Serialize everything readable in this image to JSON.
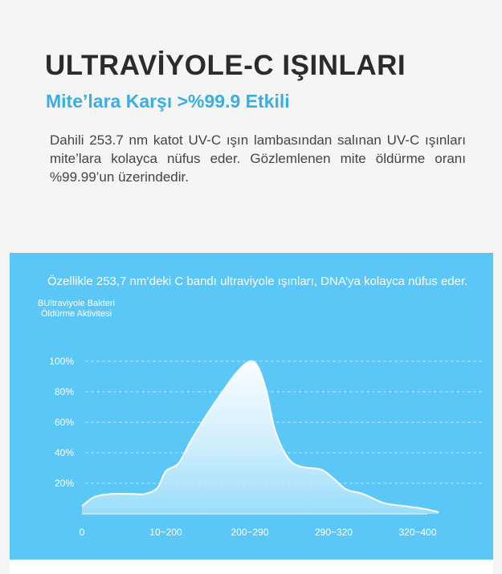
{
  "header": {
    "title": "ULTRAVİYOLE-C IŞINLARI",
    "subtitle": "Mite’lara Karşı >%99.9 Etkili",
    "description": "Dahili 253.7 nm katot UV-C ışın lambasından salınan UV-C ışınları mite’lara kolayca nüfus eder. Gözlemlenen mite öldürme oranı %99.99’un üzerindedir."
  },
  "panel": {
    "caption": "Özellikle 253,7 nm’deki C bandı ultraviyole ışınları, DNA’ya kolayca nüfus eder.",
    "bg_color": "#5bc7f7"
  },
  "chart_data": {
    "type": "area",
    "ylabel_lines": [
      "BUltraviyole Bakteri",
      "Öldürme Aktivitesi"
    ],
    "xlabel": "",
    "y_ticks": [
      "20%",
      "40%",
      "60%",
      "80%",
      "100%"
    ],
    "x_ticks": [
      {
        "label": "0",
        "x": 0
      },
      {
        "label": "10~200",
        "x": 1
      },
      {
        "label": "200~290",
        "x": 2
      },
      {
        "label": "290~320",
        "x": 3
      },
      {
        "label": "320~400",
        "x": 4
      }
    ],
    "ylim": [
      0,
      100
    ],
    "xlim": [
      0,
      4
    ],
    "grid": true,
    "series": [
      {
        "x": [
          0,
          0.15,
          0.35,
          0.6,
          0.75,
          0.9,
          1.0,
          1.15,
          1.3,
          1.5,
          1.7,
          1.85,
          2.0,
          2.1,
          2.2,
          2.3,
          2.45,
          2.6,
          2.85,
          3.0,
          3.15,
          3.35,
          3.6,
          3.85,
          4.1,
          4.25
        ],
        "y": [
          5,
          11,
          13,
          13,
          13,
          17,
          28,
          33,
          48,
          66,
          82,
          93,
          100,
          96,
          80,
          55,
          37,
          31,
          29,
          23,
          16,
          13,
          7,
          5,
          3,
          1
        ]
      }
    ]
  }
}
